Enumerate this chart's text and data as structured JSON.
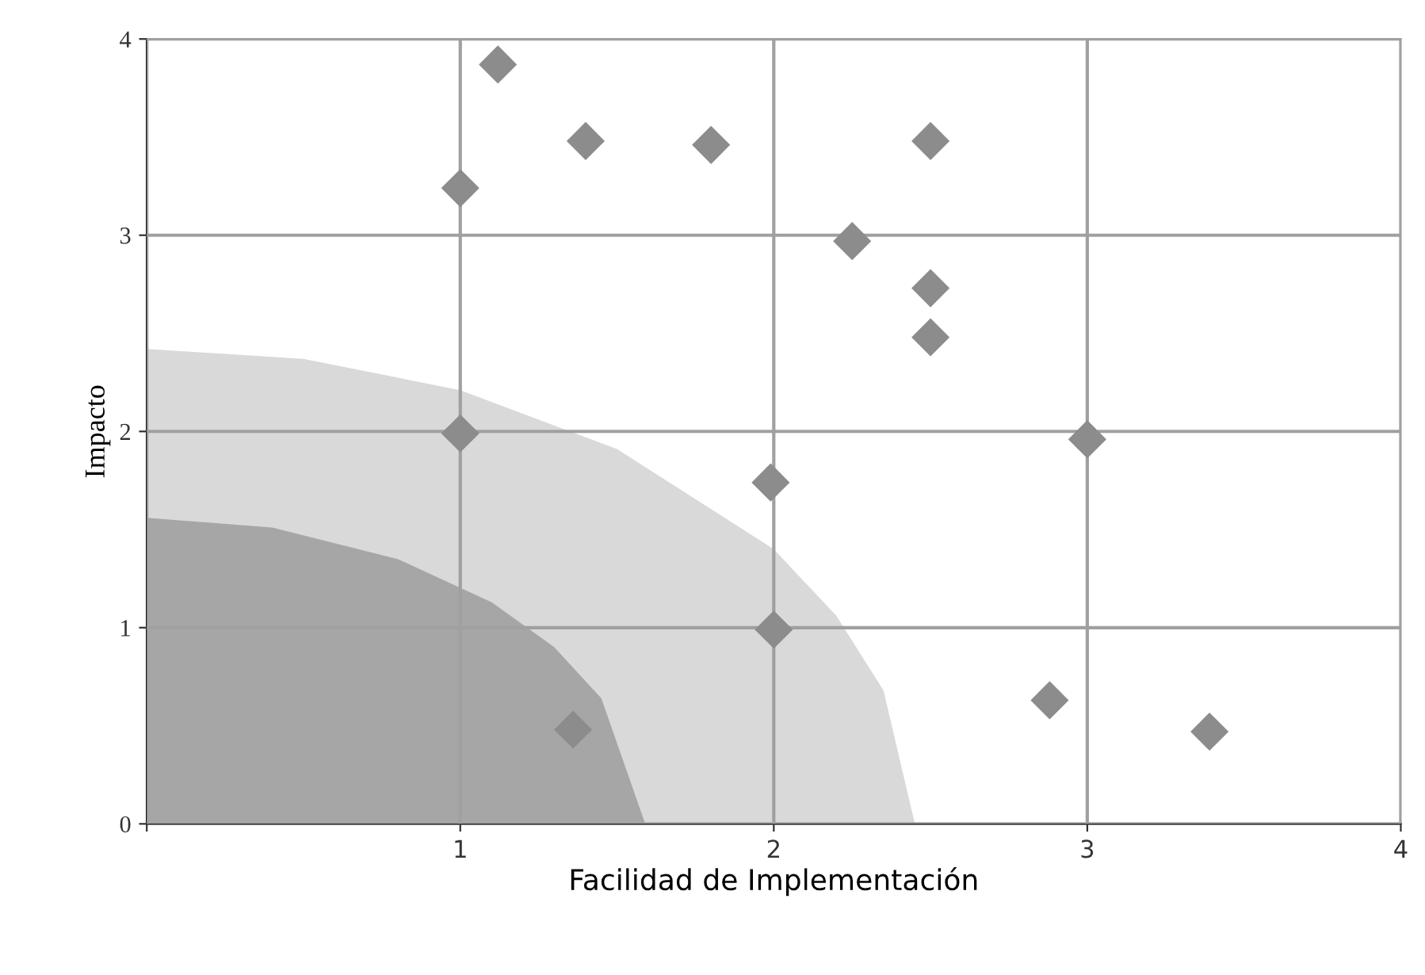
{
  "chart_data": {
    "type": "scatter",
    "xlabel": "Facilidad de Implementación",
    "ylabel": "Impacto",
    "xlim": [
      0,
      4
    ],
    "ylim": [
      0,
      4
    ],
    "xticks": [
      {
        "value": 0,
        "label": null
      },
      1,
      2,
      3,
      4
    ],
    "yticks": [
      0,
      1,
      2,
      3,
      4
    ],
    "grid": true,
    "series": [
      {
        "type": "area",
        "color": "#d9d9d9",
        "x": [
          0,
          0.5,
          1,
          1.5,
          2,
          2.2,
          2.35,
          2.45
        ],
        "values": [
          2.42,
          2.37,
          2.21,
          1.91,
          1.4,
          1.06,
          0.68,
          0
        ]
      },
      {
        "type": "area",
        "color": "#a6a6a6",
        "x": [
          0,
          0.4,
          0.8,
          1.1,
          1.3,
          1.45,
          1.59
        ],
        "values": [
          1.56,
          1.51,
          1.35,
          1.13,
          0.9,
          0.64,
          0
        ]
      },
      {
        "marker": "diamond",
        "color": "#8c8c8c",
        "x": [
          1.12,
          1.4,
          1.8,
          2.5,
          1.0,
          2.25,
          2.5,
          2.5,
          1.0,
          3.0,
          1.99,
          2.0,
          1.36,
          2.88,
          3.39
        ],
        "values": [
          3.87,
          3.48,
          3.46,
          3.48,
          3.24,
          2.97,
          2.73,
          2.48,
          1.99,
          1.96,
          1.74,
          0.99,
          0.48,
          0.63,
          0.47
        ]
      }
    ]
  }
}
